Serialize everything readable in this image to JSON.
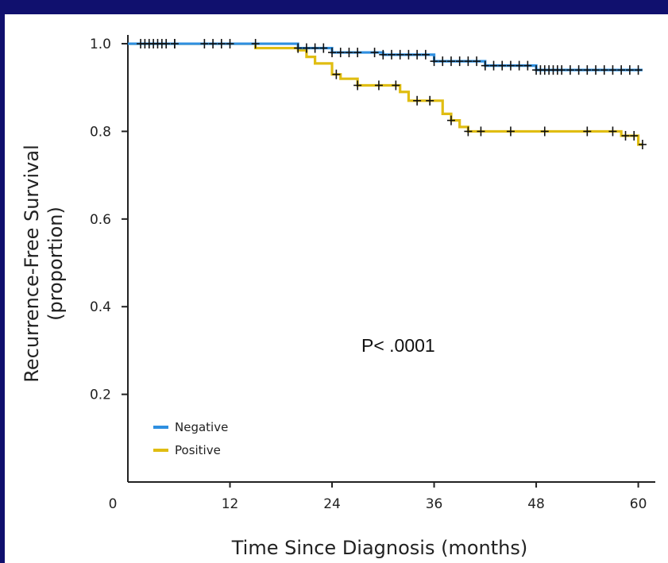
{
  "chart_data": {
    "type": "line",
    "title": "",
    "xlabel": "Time Since Diagnosis (months)",
    "ylabel": "Recurrence-Free Survival",
    "ylabel_sub": "(proportion)",
    "xlim": [
      0,
      62
    ],
    "ylim": [
      0,
      1.02
    ],
    "x_ticks": [
      0,
      12,
      24,
      36,
      48,
      60
    ],
    "x_tick_labels": [
      "0",
      "12",
      "24",
      "36",
      "48",
      "60"
    ],
    "y_ticks": [
      0.2,
      0.4,
      0.6,
      0.8,
      1.0
    ],
    "y_tick_labels": [
      "0.2",
      "0.4",
      "0.6",
      "0.8",
      "1.0"
    ],
    "grid": false,
    "legend_position": "bottom-left",
    "annotation": "P< .0001",
    "series": [
      {
        "name": "Negative",
        "color": "#2e8fe0",
        "steps": [
          [
            0,
            1.0
          ],
          [
            14,
            1.0
          ],
          [
            20,
            0.99
          ],
          [
            24,
            0.98
          ],
          [
            30,
            0.975
          ],
          [
            36,
            0.96
          ],
          [
            42,
            0.95
          ],
          [
            48,
            0.94
          ],
          [
            60.5,
            0.94
          ]
        ],
        "censored": [
          1.5,
          2,
          2.5,
          3,
          3.5,
          4,
          4.5,
          5.5,
          9,
          10,
          11,
          12,
          15,
          20,
          21,
          22,
          23,
          24,
          25,
          26,
          27,
          29,
          30,
          31,
          32,
          33,
          34,
          35,
          36,
          37,
          38,
          39,
          40,
          41,
          42,
          43,
          44,
          45,
          46,
          47,
          48,
          48.5,
          49,
          49.5,
          50,
          50.5,
          51,
          52,
          53,
          54,
          55,
          56,
          57,
          58,
          59,
          60
        ]
      },
      {
        "name": "Positive",
        "color": "#e0bd12",
        "steps": [
          [
            0,
            1.0
          ],
          [
            15,
            0.99
          ],
          [
            20,
            0.985
          ],
          [
            21,
            0.97
          ],
          [
            22,
            0.955
          ],
          [
            24,
            0.93
          ],
          [
            25,
            0.92
          ],
          [
            27,
            0.905
          ],
          [
            32,
            0.89
          ],
          [
            33,
            0.87
          ],
          [
            37,
            0.84
          ],
          [
            38,
            0.825
          ],
          [
            39,
            0.81
          ],
          [
            40,
            0.8
          ],
          [
            58,
            0.79
          ],
          [
            60,
            0.77
          ],
          [
            60.5,
            0.77
          ]
        ],
        "censored": [
          5.5,
          24.5,
          27,
          29.5,
          31.5,
          34,
          35.5,
          38,
          40,
          41.5,
          45,
          49,
          54,
          57,
          58.5,
          59.5,
          60.5
        ]
      }
    ]
  }
}
